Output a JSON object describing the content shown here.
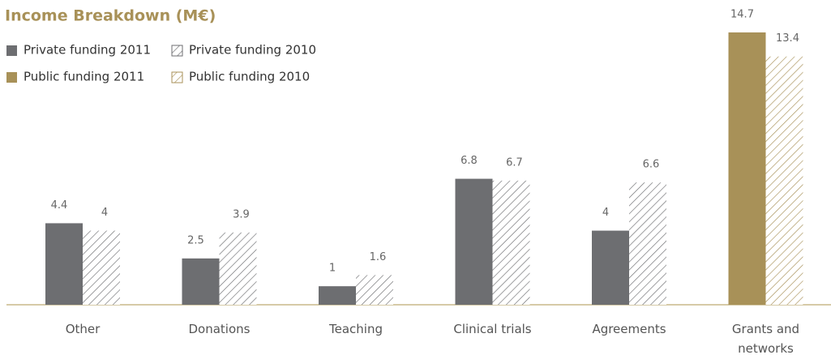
{
  "chart_data": {
    "type": "bar",
    "title": "Income Breakdown  (M€)",
    "categories": [
      "Other",
      "Donations",
      "Teaching",
      "Clinical trials",
      "Agreements",
      "Grants and networks"
    ],
    "series": [
      {
        "name": "Private funding 2011",
        "color": "#6d6e71",
        "hatch": false,
        "values": [
          4.4,
          2.5,
          1,
          6.8,
          4,
          null
        ]
      },
      {
        "name": "Private funding 2010",
        "color": "#6d6e71",
        "hatch": true,
        "values": [
          4,
          3.9,
          1.6,
          6.7,
          6.6,
          null
        ]
      },
      {
        "name": "Public funding 2011",
        "color": "#a89158",
        "hatch": false,
        "values": [
          null,
          null,
          null,
          null,
          null,
          14.7
        ]
      },
      {
        "name": "Public funding 2010",
        "color": "#a89158",
        "hatch": true,
        "values": [
          null,
          null,
          null,
          null,
          null,
          13.4
        ]
      }
    ]
  }
}
